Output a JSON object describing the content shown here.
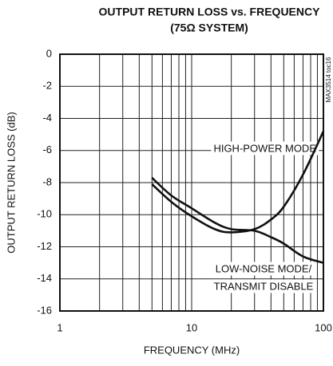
{
  "chart_data": {
    "type": "line",
    "title": "OUTPUT RETURN LOSS vs. FREQUENCY",
    "subtitle": "(75Ω SYSTEM)",
    "x_label": "FREQUENCY (MHz)",
    "y_label": "OUTPUT RETURN LOSS (dB)",
    "side_note": "MAX3514 toc16",
    "annotations": [
      "HIGH-POWER MODE",
      "LOW-NOISE MODE/",
      "TRANSMIT DISABLE"
    ],
    "x": [
      5,
      7,
      10,
      15,
      20,
      30,
      40,
      50,
      70,
      100
    ],
    "series": [
      {
        "name": "HIGH-POWER MODE",
        "color": "#111111",
        "values": [
          -8.1,
          -9.2,
          -10.1,
          -10.9,
          -11.1,
          -10.9,
          -10.3,
          -9.5,
          -7.5,
          -4.8
        ]
      },
      {
        "name": "LOW-NOISE MODE/TRANSMIT DISABLE",
        "color": "#111111",
        "values": [
          -7.7,
          -8.8,
          -9.6,
          -10.5,
          -10.9,
          -11.0,
          -11.4,
          -11.8,
          -12.6,
          -13.0
        ]
      }
    ],
    "xscale": "log",
    "xlim": [
      1,
      100
    ],
    "xticks": [
      1,
      10,
      100
    ],
    "xminorticks": [
      2,
      3,
      4,
      5,
      6,
      7,
      8,
      9,
      20,
      30,
      40,
      50,
      60,
      70,
      80,
      90
    ],
    "ylim": [
      -16,
      0
    ],
    "yticks": [
      0,
      -2,
      -4,
      -6,
      -8,
      -10,
      -12,
      -14,
      -16
    ],
    "grid": true
  }
}
